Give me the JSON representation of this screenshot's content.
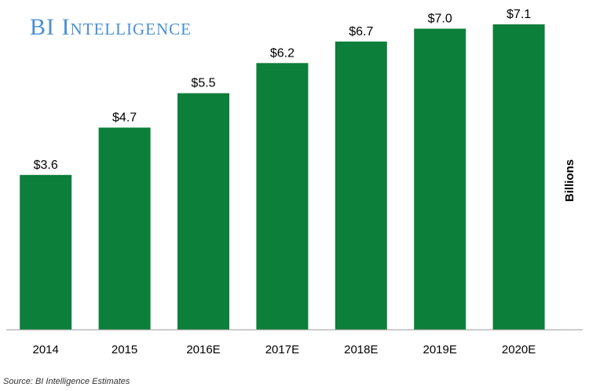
{
  "brand": {
    "title": "BI Intelligence"
  },
  "source": "Source: BI Intelligence Estimates",
  "colors": {
    "bar": "#0c7f3b",
    "axis": "#999999",
    "brand": "#4a8fd1"
  },
  "chart_data": {
    "type": "bar",
    "categories": [
      "2014",
      "2015",
      "2016E",
      "2017E",
      "2018E",
      "2019E",
      "2020E"
    ],
    "values": [
      3.6,
      4.7,
      5.5,
      6.2,
      6.7,
      7.0,
      7.1
    ],
    "value_labels": [
      "$3.6",
      "$4.7",
      "$5.5",
      "$6.2",
      "$6.7",
      "$7.0",
      "$7.1"
    ],
    "ylabel": "Billions",
    "ylim": [
      0,
      7.1
    ],
    "grid": false,
    "legend": "none"
  }
}
